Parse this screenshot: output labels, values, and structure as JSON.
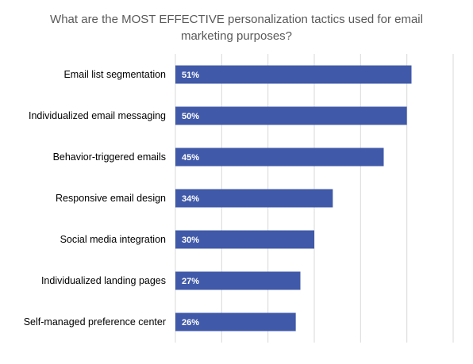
{
  "chart_data": {
    "type": "bar",
    "orientation": "horizontal",
    "title": "What are the MOST EFFECTIVE personalization tactics used for email marketing purposes?",
    "categories": [
      "Email list segmentation",
      "Individualized email messaging",
      "Behavior-triggered emails",
      "Responsive email design",
      "Social media integration",
      "Individualized landing pages",
      "Self-managed preference center"
    ],
    "values": [
      51,
      50,
      45,
      34,
      30,
      27,
      26
    ],
    "value_labels": [
      "51%",
      "50%",
      "45%",
      "34%",
      "30%",
      "27%",
      "26%"
    ],
    "xlim": [
      0,
      60
    ],
    "grid": true,
    "bar_color": "#4059A8",
    "grid_color": "#D9D9D9"
  }
}
